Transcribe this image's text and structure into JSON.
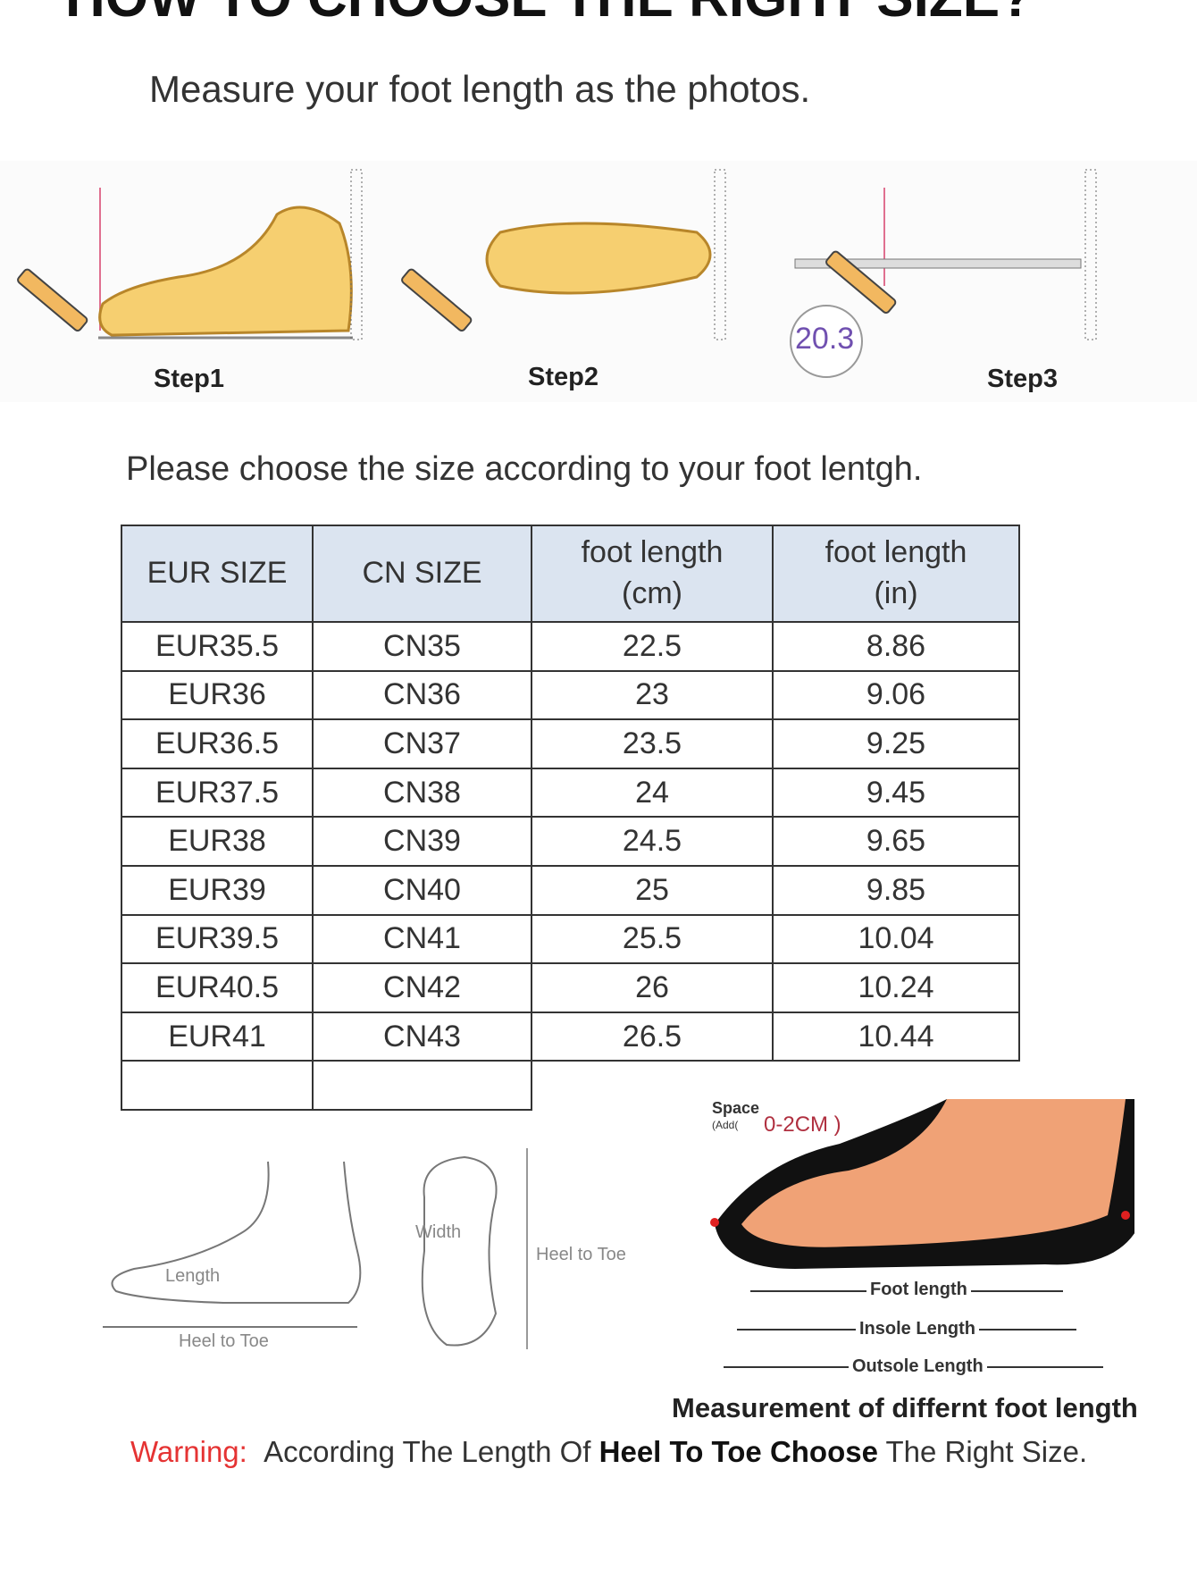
{
  "header": {
    "title": "HOW TO CHOOSE THE RIGHT SIZE?",
    "subtitle": "Measure your foot length as the photos."
  },
  "steps": [
    {
      "label": "Step1"
    },
    {
      "label": "Step2"
    },
    {
      "label": "Step3",
      "reading": "20.3"
    }
  ],
  "instruction": "Please choose the size according to your foot lentgh.",
  "size_table": {
    "headers": [
      "EUR SIZE",
      "CN SIZE",
      "foot length (cm)",
      "foot length (in)"
    ],
    "header_lines": [
      [
        "EUR SIZE"
      ],
      [
        "CN SIZE"
      ],
      [
        "foot length",
        "(cm)"
      ],
      [
        "foot length",
        "(in)"
      ]
    ],
    "header_bg": "#dbe4f0",
    "rows": [
      [
        "EUR35.5",
        "CN35",
        "22.5",
        "8.86"
      ],
      [
        "EUR36",
        "CN36",
        "23",
        "9.06"
      ],
      [
        "EUR36.5",
        "CN37",
        "23.5",
        "9.25"
      ],
      [
        "EUR37.5",
        "CN38",
        "24",
        "9.45"
      ],
      [
        "EUR38",
        "CN39",
        "24.5",
        "9.65"
      ],
      [
        "EUR39",
        "CN40",
        "25",
        "9.85"
      ],
      [
        "EUR39.5",
        "CN41",
        "25.5",
        "10.04"
      ],
      [
        "EUR40.5",
        "CN42",
        "26",
        "10.24"
      ],
      [
        "EUR41",
        "CN43",
        "26.5",
        "10.44"
      ]
    ]
  },
  "diagram_left": {
    "length": "Length",
    "heel_to_toe": "Heel to Toe",
    "width": "Width",
    "heel_to_toe_2": "Heel to Toe"
  },
  "diagram_right": {
    "space": "Space",
    "add": "(Add(",
    "space_value": "0-2CM )",
    "foot_length": "Foot length",
    "insole_length": "Insole Length",
    "outsole_length": "Outsole Length",
    "caption": "Measurement of differnt foot length"
  },
  "warning": {
    "label": "Warning:",
    "text_1": "According The Length Of ",
    "bold": "Heel To Toe Choose",
    "text_2": " The Right Size.",
    "color": "#e53333"
  }
}
